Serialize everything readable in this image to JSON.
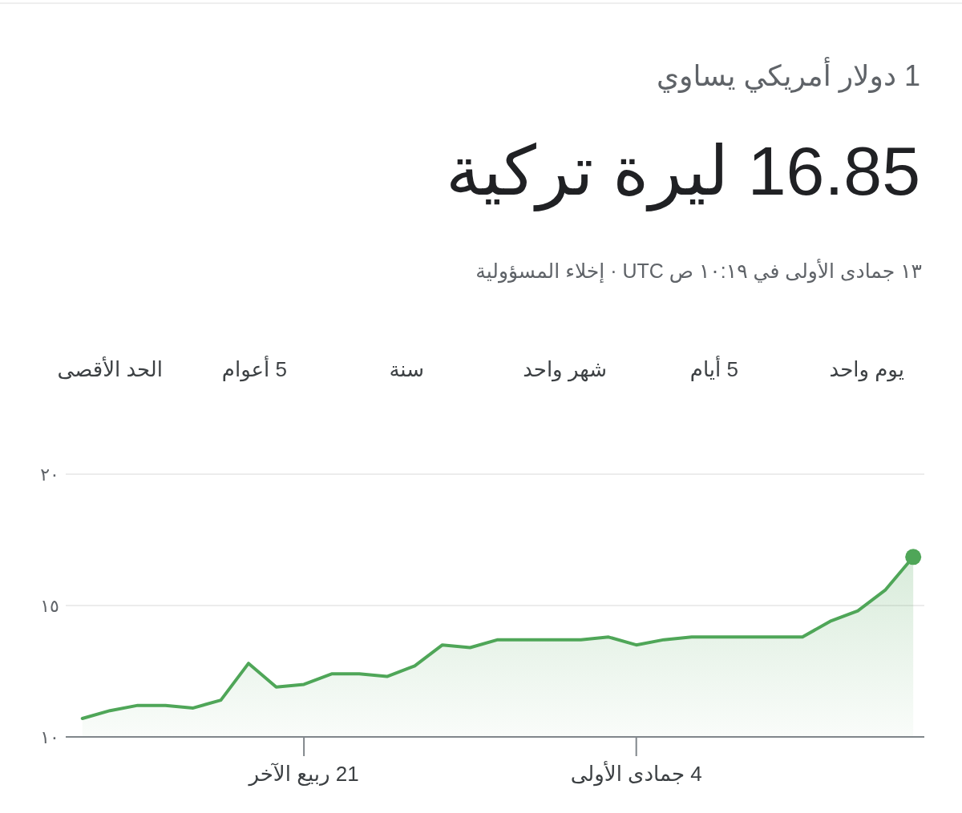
{
  "chart_data": {
    "type": "area",
    "title": "1 دولار أمريكي يساوي",
    "subtitle": "16.85 ليرة تركية",
    "annotations": [
      "١٣ جمادى الأولى في ١٠:١٩ ص UTC · إخلاء المسؤولية",
      "يوم واحد",
      "5 أيام",
      "شهر واحد",
      "سنة",
      "5 أعوام",
      "الحد الأقصى"
    ],
    "categories": [
      null,
      null,
      null,
      null,
      null,
      null,
      null,
      null,
      "21 ربيع الآخر",
      null,
      null,
      null,
      null,
      null,
      null,
      null,
      null,
      null,
      null,
      null,
      "4 جمادى الأولى",
      null,
      null,
      null,
      null,
      null,
      null,
      null,
      null,
      null,
      null
    ],
    "series": [
      {
        "color": "#4fa658",
        "values": [
          10.7,
          11.0,
          11.2,
          11.2,
          11.1,
          11.4,
          12.8,
          11.9,
          12.0,
          12.4,
          12.4,
          12.3,
          12.7,
          13.5,
          13.4,
          13.7,
          13.7,
          13.7,
          13.7,
          13.8,
          13.5,
          13.7,
          13.8,
          13.8,
          13.8,
          13.8,
          13.8,
          14.4,
          14.8,
          15.6,
          16.85
        ]
      }
    ],
    "ylim": [
      10,
      20
    ],
    "yticks": [
      {
        "value": 10,
        "label": "١٠"
      },
      {
        "value": 15,
        "label": "١٥"
      },
      {
        "value": 20,
        "label": "٢٠"
      }
    ],
    "grid": "y"
  }
}
